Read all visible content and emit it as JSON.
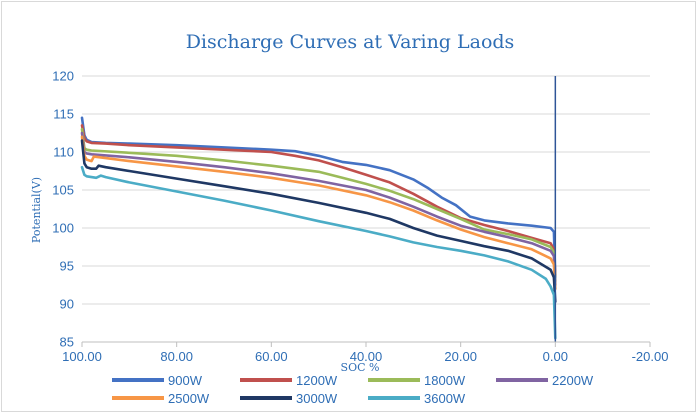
{
  "chart_data": {
    "type": "line",
    "title": "Discharge Curves at Varing Laods",
    "xlabel": "SOC %",
    "ylabel": "Potential(V)",
    "xlim": [
      100,
      -20
    ],
    "ylim": [
      85,
      120
    ],
    "x_ticks": [
      100,
      80,
      60,
      40,
      20,
      0,
      -20
    ],
    "x_tick_labels": [
      "100.00",
      "80.00",
      "60.00",
      "40.00",
      "20.00",
      "0.00",
      "-20.00"
    ],
    "y_ticks": [
      85,
      90,
      95,
      100,
      105,
      110,
      115,
      120
    ],
    "y_tick_labels": [
      "85",
      "90",
      "95",
      "100",
      "105",
      "110",
      "115",
      "120"
    ],
    "grid": "horizontal",
    "legend_position": "bottom",
    "series": [
      {
        "name": "900W",
        "color": "#4472c4",
        "points": [
          [
            100,
            114.5
          ],
          [
            99.5,
            112.2
          ],
          [
            99,
            111.6
          ],
          [
            98,
            111.3
          ],
          [
            95,
            111.2
          ],
          [
            90,
            111.1
          ],
          [
            80,
            110.9
          ],
          [
            70,
            110.6
          ],
          [
            60,
            110.3
          ],
          [
            55,
            110.1
          ],
          [
            50,
            109.5
          ],
          [
            45,
            108.7
          ],
          [
            40,
            108.3
          ],
          [
            35,
            107.6
          ],
          [
            30,
            106.4
          ],
          [
            27,
            105.3
          ],
          [
            24,
            104
          ],
          [
            21,
            103
          ],
          [
            18,
            101.5
          ],
          [
            15,
            101
          ],
          [
            10,
            100.6
          ],
          [
            5,
            100.3
          ],
          [
            1,
            100
          ],
          [
            0.3,
            99.5
          ],
          [
            0,
            93.5
          ]
        ]
      },
      {
        "name": "1200W",
        "color": "#c0504d",
        "points": [
          [
            100,
            113.5
          ],
          [
            99.5,
            111.8
          ],
          [
            99,
            111.4
          ],
          [
            98,
            111.2
          ],
          [
            95,
            111.1
          ],
          [
            90,
            110.9
          ],
          [
            80,
            110.6
          ],
          [
            70,
            110.3
          ],
          [
            60,
            110
          ],
          [
            55,
            109.5
          ],
          [
            50,
            108.9
          ],
          [
            45,
            108
          ],
          [
            40,
            107
          ],
          [
            35,
            106
          ],
          [
            30,
            104.5
          ],
          [
            25,
            102.8
          ],
          [
            20,
            101.3
          ],
          [
            15,
            100.4
          ],
          [
            10,
            99.6
          ],
          [
            5,
            98.7
          ],
          [
            1,
            98
          ],
          [
            0.3,
            97.2
          ],
          [
            0,
            93.8
          ]
        ]
      },
      {
        "name": "1800W",
        "color": "#9bbb59",
        "points": [
          [
            100,
            113
          ],
          [
            99.5,
            110.5
          ],
          [
            99,
            110.3
          ],
          [
            98,
            110.2
          ],
          [
            90,
            109.9
          ],
          [
            80,
            109.5
          ],
          [
            70,
            108.9
          ],
          [
            60,
            108.2
          ],
          [
            50,
            107.4
          ],
          [
            45,
            106.6
          ],
          [
            40,
            105.8
          ],
          [
            35,
            104.9
          ],
          [
            30,
            103.8
          ],
          [
            25,
            102.5
          ],
          [
            20,
            101.2
          ],
          [
            15,
            99.8
          ],
          [
            10,
            99.2
          ],
          [
            5,
            98.5
          ],
          [
            1,
            97.5
          ],
          [
            0.3,
            96.8
          ],
          [
            0,
            93
          ]
        ]
      },
      {
        "name": "2200W",
        "color": "#8064a2",
        "points": [
          [
            100,
            112.5
          ],
          [
            99.5,
            110
          ],
          [
            99,
            109.8
          ],
          [
            98,
            109.7
          ],
          [
            90,
            109.3
          ],
          [
            80,
            108.7
          ],
          [
            70,
            108
          ],
          [
            60,
            107.2
          ],
          [
            50,
            106.2
          ],
          [
            40,
            105
          ],
          [
            35,
            104
          ],
          [
            30,
            102.8
          ],
          [
            25,
            101.5
          ],
          [
            20,
            100.3
          ],
          [
            15,
            99.5
          ],
          [
            10,
            98.8
          ],
          [
            5,
            98
          ],
          [
            1,
            97
          ],
          [
            0.3,
            96.3
          ],
          [
            0,
            92.5
          ]
        ]
      },
      {
        "name": "2500W",
        "color": "#f79646",
        "points": [
          [
            100,
            112
          ],
          [
            99.5,
            109.5
          ],
          [
            99,
            109
          ],
          [
            98,
            108.8
          ],
          [
            97.5,
            109.4
          ],
          [
            95,
            109.2
          ],
          [
            90,
            108.8
          ],
          [
            80,
            108.1
          ],
          [
            70,
            107.4
          ],
          [
            60,
            106.6
          ],
          [
            50,
            105.6
          ],
          [
            40,
            104.3
          ],
          [
            35,
            103.4
          ],
          [
            30,
            102.3
          ],
          [
            25,
            101
          ],
          [
            20,
            99.8
          ],
          [
            15,
            98.8
          ],
          [
            10,
            98
          ],
          [
            5,
            97.2
          ],
          [
            1,
            96
          ],
          [
            0.3,
            95.2
          ],
          [
            0,
            92
          ]
        ]
      },
      {
        "name": "3000W",
        "color": "#1f3864",
        "points": [
          [
            100,
            111.5
          ],
          [
            99.5,
            108.5
          ],
          [
            99,
            108
          ],
          [
            98,
            107.8
          ],
          [
            97,
            107.8
          ],
          [
            96.5,
            108.2
          ],
          [
            95,
            108
          ],
          [
            90,
            107.5
          ],
          [
            80,
            106.5
          ],
          [
            70,
            105.5
          ],
          [
            60,
            104.5
          ],
          [
            50,
            103.3
          ],
          [
            40,
            102
          ],
          [
            35,
            101.2
          ],
          [
            30,
            100
          ],
          [
            25,
            99
          ],
          [
            20,
            98.3
          ],
          [
            15,
            97.6
          ],
          [
            10,
            97
          ],
          [
            5,
            96
          ],
          [
            1,
            94.5
          ],
          [
            0.3,
            93.5
          ],
          [
            0,
            90.3
          ]
        ]
      },
      {
        "name": "3600W",
        "color": "#4bacc6",
        "points": [
          [
            100,
            108
          ],
          [
            99.5,
            107
          ],
          [
            99,
            106.8
          ],
          [
            97,
            106.6
          ],
          [
            96,
            106.9
          ],
          [
            95,
            106.7
          ],
          [
            90,
            106
          ],
          [
            80,
            104.8
          ],
          [
            70,
            103.6
          ],
          [
            60,
            102.3
          ],
          [
            50,
            100.9
          ],
          [
            40,
            99.6
          ],
          [
            35,
            98.9
          ],
          [
            30,
            98.1
          ],
          [
            25,
            97.5
          ],
          [
            20,
            97
          ],
          [
            15,
            96.4
          ],
          [
            10,
            95.6
          ],
          [
            5,
            94.5
          ],
          [
            2,
            93.3
          ],
          [
            1,
            92.3
          ],
          [
            0.3,
            91.2
          ],
          [
            0,
            85.5
          ]
        ]
      }
    ]
  }
}
